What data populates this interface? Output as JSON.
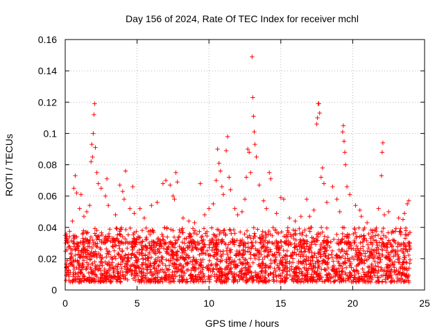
{
  "chart_data": {
    "type": "scatter",
    "title": "Day 156 of 2024, Rate Of TEC Index for receiver mchl",
    "xlabel": "GPS time / hours",
    "ylabel": "ROTI / TECUs",
    "xlim": [
      0,
      25
    ],
    "ylim": [
      0,
      0.16
    ],
    "xticks": [
      0,
      5,
      10,
      15,
      20,
      25
    ],
    "xtick_labels": [
      "0",
      "5",
      "10",
      "15",
      "20",
      "25"
    ],
    "yticks": [
      0,
      0.02,
      0.04,
      0.06,
      0.08,
      0.1,
      0.12,
      0.14,
      0.16
    ],
    "ytick_labels": [
      "0",
      "0.02",
      "0.04",
      "0.06",
      "0.08",
      "0.1",
      "0.12",
      "0.14",
      "0.16"
    ],
    "grid": true,
    "marker": "+",
    "series_color": "#ff0000",
    "series": [
      {
        "name": "ROTI",
        "points": [
          [
            0.1,
            0.034
          ],
          [
            0.3,
            0.028
          ],
          [
            0.5,
            0.044
          ],
          [
            0.6,
            0.065
          ],
          [
            0.7,
            0.073
          ],
          [
            0.8,
            0.062
          ],
          [
            1.0,
            0.052
          ],
          [
            1.1,
            0.061
          ],
          [
            1.3,
            0.047
          ],
          [
            1.5,
            0.05
          ],
          [
            1.7,
            0.054
          ],
          [
            1.8,
            0.082
          ],
          [
            1.85,
            0.093
          ],
          [
            1.9,
            0.085
          ],
          [
            1.95,
            0.1
          ],
          [
            2.0,
            0.112
          ],
          [
            2.05,
            0.119
          ],
          [
            2.1,
            0.091
          ],
          [
            2.2,
            0.075
          ],
          [
            2.3,
            0.068
          ],
          [
            2.5,
            0.065
          ],
          [
            2.8,
            0.06
          ],
          [
            2.9,
            0.071
          ],
          [
            3.0,
            0.054
          ],
          [
            3.5,
            0.048
          ],
          [
            3.8,
            0.067
          ],
          [
            4.0,
            0.063
          ],
          [
            4.1,
            0.058
          ],
          [
            4.2,
            0.076
          ],
          [
            4.5,
            0.052
          ],
          [
            4.7,
            0.066
          ],
          [
            4.8,
            0.049
          ],
          [
            5.2,
            0.052
          ],
          [
            5.5,
            0.046
          ],
          [
            6.0,
            0.054
          ],
          [
            6.4,
            0.056
          ],
          [
            6.8,
            0.068
          ],
          [
            7.0,
            0.07
          ],
          [
            7.3,
            0.067
          ],
          [
            7.5,
            0.06
          ],
          [
            7.6,
            0.058
          ],
          [
            7.7,
            0.075
          ],
          [
            7.8,
            0.069
          ],
          [
            8.2,
            0.046
          ],
          [
            8.6,
            0.044
          ],
          [
            9.0,
            0.043
          ],
          [
            9.4,
            0.068
          ],
          [
            9.7,
            0.048
          ],
          [
            10.0,
            0.052
          ],
          [
            10.3,
            0.055
          ],
          [
            10.5,
            0.07
          ],
          [
            10.6,
            0.09
          ],
          [
            10.7,
            0.081
          ],
          [
            10.8,
            0.076
          ],
          [
            10.9,
            0.066
          ],
          [
            11.0,
            0.061
          ],
          [
            11.2,
            0.089
          ],
          [
            11.3,
            0.098
          ],
          [
            11.4,
            0.072
          ],
          [
            11.5,
            0.064
          ],
          [
            11.8,
            0.052
          ],
          [
            12.0,
            0.048
          ],
          [
            12.3,
            0.05
          ],
          [
            12.5,
            0.058
          ],
          [
            12.6,
            0.072
          ],
          [
            12.7,
            0.09
          ],
          [
            12.8,
            0.088
          ],
          [
            12.9,
            0.075
          ],
          [
            13.0,
            0.149
          ],
          [
            13.05,
            0.123
          ],
          [
            13.1,
            0.111
          ],
          [
            13.15,
            0.101
          ],
          [
            13.2,
            0.093
          ],
          [
            13.3,
            0.085
          ],
          [
            13.5,
            0.067
          ],
          [
            13.8,
            0.057
          ],
          [
            14.0,
            0.052
          ],
          [
            14.2,
            0.075
          ],
          [
            14.3,
            0.071
          ],
          [
            14.7,
            0.049
          ],
          [
            15.0,
            0.059
          ],
          [
            15.2,
            0.058
          ],
          [
            15.6,
            0.046
          ],
          [
            16.0,
            0.044
          ],
          [
            16.4,
            0.047
          ],
          [
            16.8,
            0.058
          ],
          [
            17.0,
            0.047
          ],
          [
            17.3,
            0.051
          ],
          [
            17.5,
            0.106
          ],
          [
            17.55,
            0.11
          ],
          [
            17.6,
            0.119
          ],
          [
            17.65,
            0.119
          ],
          [
            17.7,
            0.113
          ],
          [
            17.8,
            0.072
          ],
          [
            17.9,
            0.078
          ],
          [
            18.0,
            0.068
          ],
          [
            18.2,
            0.056
          ],
          [
            18.6,
            0.066
          ],
          [
            18.9,
            0.058
          ],
          [
            19.1,
            0.05
          ],
          [
            19.3,
            0.101
          ],
          [
            19.35,
            0.105
          ],
          [
            19.4,
            0.095
          ],
          [
            19.45,
            0.088
          ],
          [
            19.5,
            0.08
          ],
          [
            19.6,
            0.066
          ],
          [
            19.8,
            0.061
          ],
          [
            20.2,
            0.054
          ],
          [
            20.5,
            0.051
          ],
          [
            20.6,
            0.047
          ],
          [
            21.0,
            0.043
          ],
          [
            21.4,
            0.038
          ],
          [
            21.8,
            0.052
          ],
          [
            22.0,
            0.073
          ],
          [
            22.05,
            0.088
          ],
          [
            22.1,
            0.094
          ],
          [
            22.2,
            0.048
          ],
          [
            22.5,
            0.05
          ],
          [
            22.8,
            0.032
          ],
          [
            23.2,
            0.046
          ],
          [
            23.5,
            0.045
          ],
          [
            23.6,
            0.049
          ],
          [
            23.8,
            0.055
          ],
          [
            23.9,
            0.057
          ]
        ],
        "dense_band": {
          "x_range": [
            0,
            24
          ],
          "y_baseline_range": [
            0.005,
            0.03
          ],
          "typical_upper": 0.04,
          "approx_count": 2500,
          "description": "dense cloud of + markers between 0.005 and 0.04 TECUs across the day"
        }
      }
    ]
  }
}
